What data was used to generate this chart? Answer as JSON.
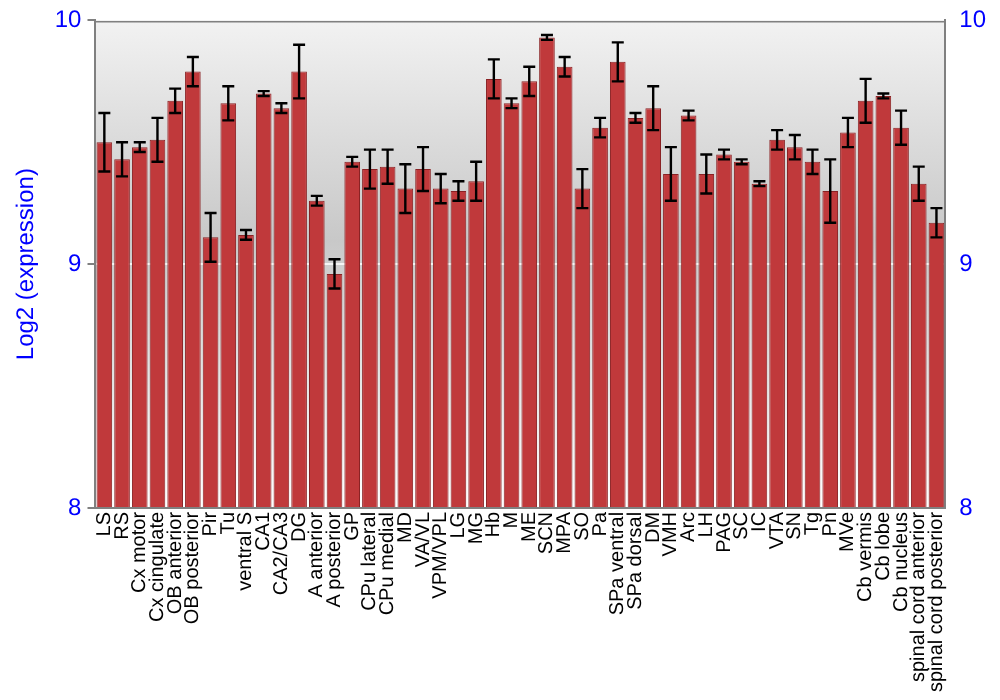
{
  "chart_data": {
    "type": "bar",
    "ylabel": "Log2 (expression)",
    "categories": [
      "LS",
      "RS",
      "Cx motor",
      "Cx cingulate",
      "OB anterior",
      "OB posterior",
      "Pir",
      "Tu",
      "ventral S",
      "CA1",
      "CA2/CA3",
      "DG",
      "A anterior",
      "A posterior",
      "GP",
      "CPu lateral",
      "CPu medial",
      "MD",
      "VA/VL",
      "VPM/VPL",
      "LG",
      "MG",
      "Hb",
      "M",
      "ME",
      "SCN",
      "MPA",
      "SO",
      "Pa",
      "SPa ventral",
      "SPa dorsal",
      "DM",
      "VMH",
      "Arc",
      "LH",
      "PAG",
      "SC",
      "IC",
      "VTA",
      "SN",
      "Tg",
      "Pn",
      "MVe",
      "Cb vermis",
      "Cb lobe",
      "Cb nucleus",
      "spinal cord anterior",
      "spinal cord posterior"
    ],
    "values": [
      9.5,
      9.43,
      9.48,
      9.51,
      9.67,
      9.79,
      9.11,
      9.66,
      9.12,
      9.7,
      9.64,
      9.79,
      9.26,
      8.96,
      9.42,
      9.39,
      9.4,
      9.31,
      9.39,
      9.31,
      9.3,
      9.34,
      9.76,
      9.66,
      9.75,
      9.93,
      9.81,
      9.31,
      9.56,
      9.83,
      9.6,
      9.64,
      9.37,
      9.61,
      9.37,
      9.45,
      9.42,
      9.33,
      9.51,
      9.48,
      9.42,
      9.3,
      9.54,
      9.67,
      9.69,
      9.56,
      9.33,
      9.17
    ],
    "errors": [
      0.12,
      0.07,
      0.02,
      0.09,
      0.05,
      0.06,
      0.1,
      0.07,
      0.02,
      0.01,
      0.02,
      0.11,
      0.02,
      0.06,
      0.02,
      0.08,
      0.07,
      0.1,
      0.09,
      0.06,
      0.04,
      0.08,
      0.08,
      0.02,
      0.06,
      0.01,
      0.04,
      0.08,
      0.04,
      0.08,
      0.02,
      0.09,
      0.11,
      0.02,
      0.08,
      0.02,
      0.01,
      0.01,
      0.04,
      0.05,
      0.05,
      0.13,
      0.06,
      0.09,
      0.01,
      0.07,
      0.07,
      0.06
    ],
    "color": "#c0393b",
    "ylim": [
      8,
      10
    ],
    "yticks": [
      8,
      9,
      10
    ],
    "y2lim": [
      8,
      10
    ],
    "y2ticks": [
      8,
      9,
      10
    ],
    "grid": "y",
    "legend": false
  }
}
